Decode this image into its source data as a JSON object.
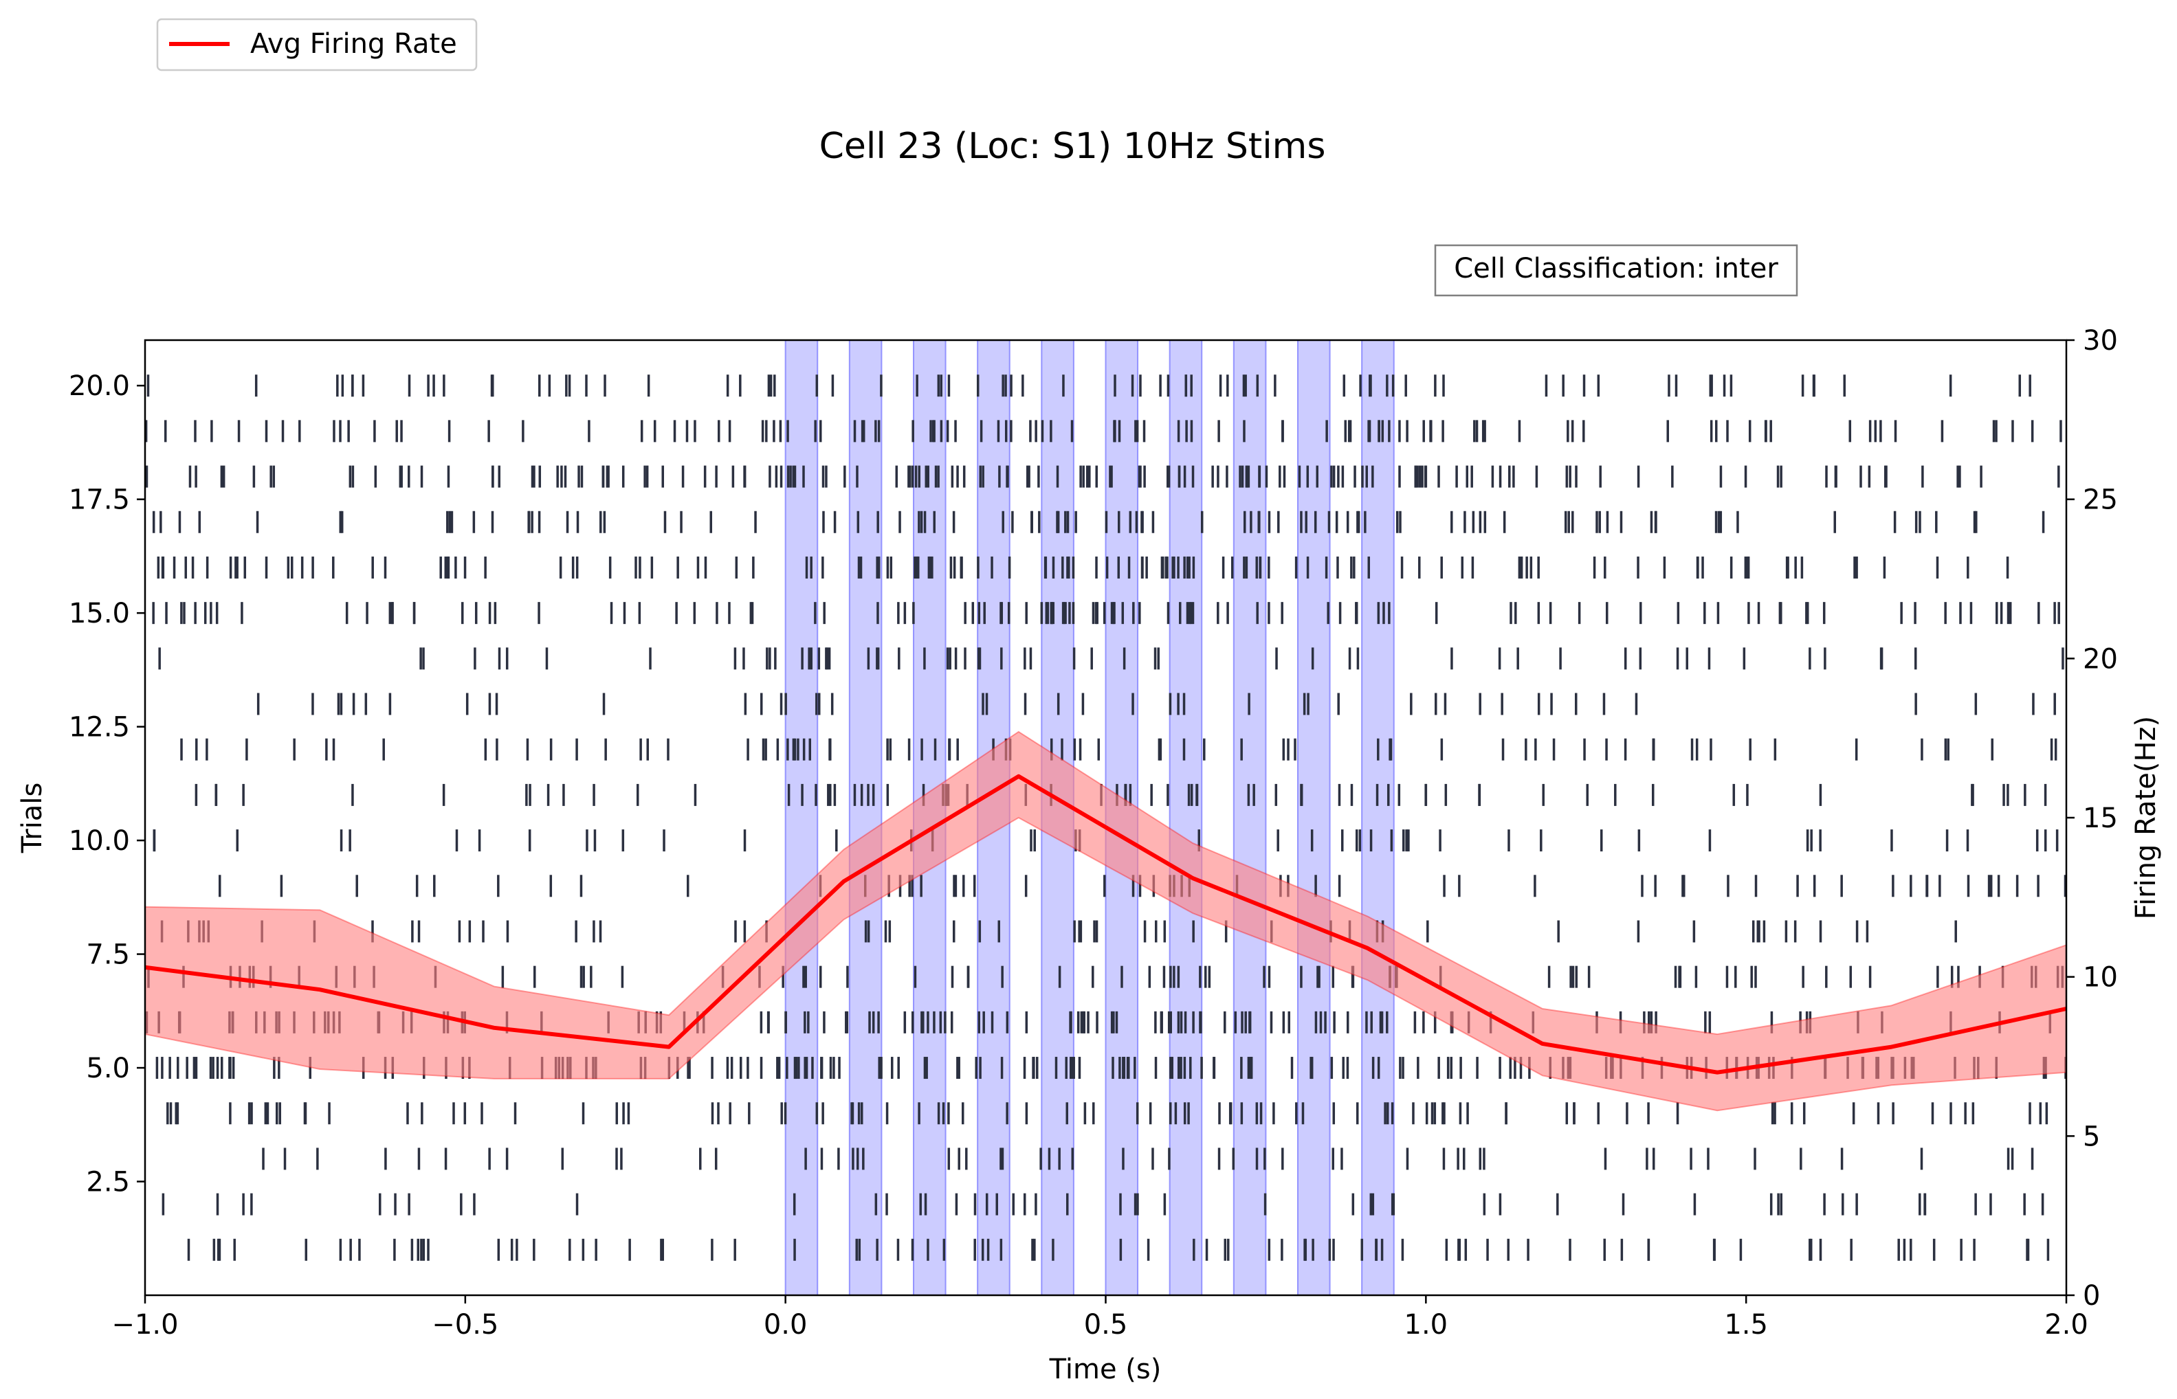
{
  "chart_data": {
    "type": "line",
    "title": "Cell 23 (Loc: S1) 10Hz Stims",
    "annotation": "Cell Classification: inter",
    "xlabel": "Time (s)",
    "ylabel_left": "Trials",
    "ylabel_right": "Firing Rate(Hz)",
    "xlim": [
      -1.0,
      2.0
    ],
    "ylim_left": [
      0,
      21
    ],
    "ylim_right": [
      0,
      30
    ],
    "xticks": [
      -1.0,
      -0.5,
      0.0,
      0.5,
      1.0,
      1.5,
      2.0
    ],
    "xtick_labels": [
      "−1.0",
      "−0.5",
      "0.0",
      "0.5",
      "1.0",
      "1.5",
      "2.0"
    ],
    "yticks_left": [
      2.5,
      5.0,
      7.5,
      10.0,
      12.5,
      15.0,
      17.5,
      20.0
    ],
    "ytick_labels_left": [
      "2.5",
      "5.0",
      "7.5",
      "10.0",
      "12.5",
      "15.0",
      "17.5",
      "20.0"
    ],
    "yticks_right": [
      0,
      5,
      10,
      15,
      20,
      25,
      30
    ],
    "ytick_labels_right": [
      "0",
      "5",
      "10",
      "15",
      "20",
      "25",
      "30"
    ],
    "legend": {
      "label": "Avg Firing Rate",
      "location": "top-left, above plot"
    },
    "stim_windows": [
      [
        0.0,
        0.05
      ],
      [
        0.1,
        0.15
      ],
      [
        0.2,
        0.25
      ],
      [
        0.3,
        0.35
      ],
      [
        0.4,
        0.45
      ],
      [
        0.5,
        0.55
      ],
      [
        0.6,
        0.65
      ],
      [
        0.7,
        0.75
      ],
      [
        0.8,
        0.85
      ],
      [
        0.9,
        0.95
      ]
    ],
    "firing_rate": {
      "name": "Avg Firing Rate",
      "x": [
        -1.0,
        -0.727,
        -0.455,
        -0.182,
        0.091,
        0.364,
        0.636,
        0.909,
        1.182,
        1.455,
        1.727,
        2.0
      ],
      "y": [
        10.3,
        9.6,
        8.4,
        7.8,
        13.0,
        16.3,
        13.1,
        10.9,
        7.9,
        7.0,
        7.8,
        9.0
      ],
      "lower": [
        8.2,
        7.1,
        6.8,
        6.8,
        11.8,
        15.0,
        12.0,
        9.9,
        6.9,
        5.8,
        6.6,
        7.0
      ],
      "upper": [
        12.2,
        12.1,
        9.7,
        8.8,
        14.0,
        17.7,
        14.2,
        11.9,
        9.0,
        8.2,
        9.1,
        11.0
      ]
    },
    "raster": {
      "trials": [
        1,
        2,
        3,
        4,
        5,
        6,
        7,
        8,
        9,
        10,
        11,
        12,
        13,
        14,
        15,
        16,
        17,
        18,
        19,
        20
      ],
      "baseline_rates_hz": [
        25,
        15,
        14,
        22,
        40,
        34,
        22,
        14,
        14,
        16,
        16,
        19,
        14,
        16,
        26,
        30,
        25,
        38,
        27,
        18
      ],
      "stim_rate_multiplier": 1.6
    },
    "colors": {
      "firing_line": "#ff0000",
      "firing_band": "#ff8080",
      "stim_band": "#8080ff",
      "spike": "#2b3040",
      "axis": "#000000"
    },
    "grid": false
  }
}
